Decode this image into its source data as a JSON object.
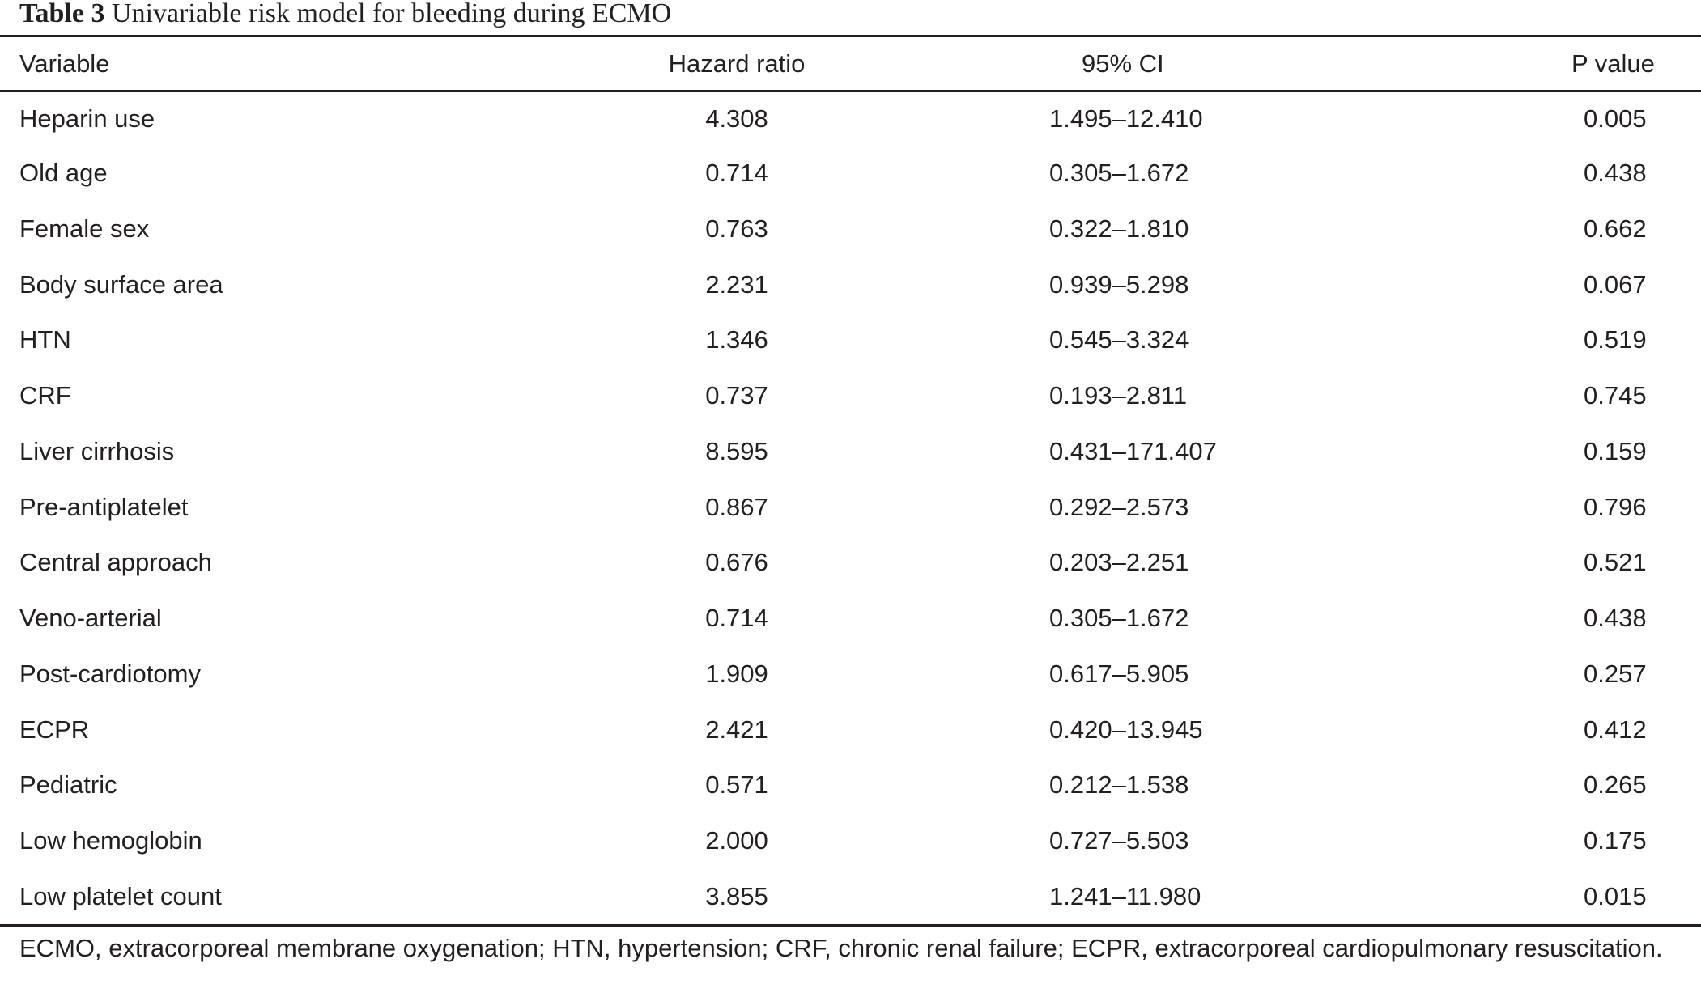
{
  "caption": {
    "label": "Table 3",
    "title": "Univariable risk model for bleeding during ECMO"
  },
  "table": {
    "headers": {
      "variable": "Variable",
      "hazard_ratio": "Hazard ratio",
      "ci": "95% CI",
      "p_value": "P value"
    },
    "rows": [
      {
        "variable": "Heparin use",
        "hazard_ratio": "4.308",
        "ci": "1.495–12.410",
        "p_value": "0.005"
      },
      {
        "variable": "Old age",
        "hazard_ratio": "0.714",
        "ci": "0.305–1.672",
        "p_value": "0.438"
      },
      {
        "variable": "Female sex",
        "hazard_ratio": "0.763",
        "ci": "0.322–1.810",
        "p_value": "0.662"
      },
      {
        "variable": "Body surface area",
        "hazard_ratio": "2.231",
        "ci": "0.939–5.298",
        "p_value": "0.067"
      },
      {
        "variable": "HTN",
        "hazard_ratio": "1.346",
        "ci": "0.545–3.324",
        "p_value": "0.519"
      },
      {
        "variable": "CRF",
        "hazard_ratio": "0.737",
        "ci": "0.193–2.811",
        "p_value": "0.745"
      },
      {
        "variable": "Liver cirrhosis",
        "hazard_ratio": "8.595",
        "ci": "0.431–171.407",
        "p_value": "0.159"
      },
      {
        "variable": "Pre-antiplatelet",
        "hazard_ratio": "0.867",
        "ci": "0.292–2.573",
        "p_value": "0.796"
      },
      {
        "variable": "Central approach",
        "hazard_ratio": "0.676",
        "ci": "0.203–2.251",
        "p_value": "0.521"
      },
      {
        "variable": "Veno-arterial",
        "hazard_ratio": "0.714",
        "ci": "0.305–1.672",
        "p_value": "0.438"
      },
      {
        "variable": "Post-cardiotomy",
        "hazard_ratio": "1.909",
        "ci": "0.617–5.905",
        "p_value": "0.257"
      },
      {
        "variable": "ECPR",
        "hazard_ratio": "2.421",
        "ci": "0.420–13.945",
        "p_value": "0.412"
      },
      {
        "variable": "Pediatric",
        "hazard_ratio": "0.571",
        "ci": "0.212–1.538",
        "p_value": "0.265"
      },
      {
        "variable": "Low hemoglobin",
        "hazard_ratio": "2.000",
        "ci": "0.727–5.503",
        "p_value": "0.175"
      },
      {
        "variable": "Low platelet count",
        "hazard_ratio": "3.855",
        "ci": "1.241–11.980",
        "p_value": "0.015"
      }
    ]
  },
  "footnote": "ECMO, extracorporeal membrane oxygenation; HTN, hypertension; CRF, chronic renal failure; ECPR, extracorporeal cardiopulmonary resuscitation."
}
